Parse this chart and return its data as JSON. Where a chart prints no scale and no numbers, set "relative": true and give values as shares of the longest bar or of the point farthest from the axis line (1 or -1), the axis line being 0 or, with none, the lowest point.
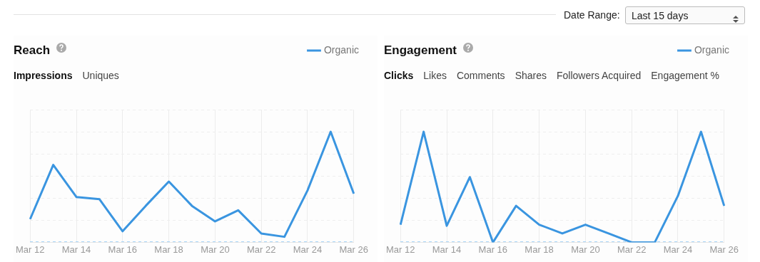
{
  "chart_data": [
    {
      "type": "line",
      "title": "Reach",
      "annotations": [
        "Date Range:",
        "Last 15 days",
        "Impressions",
        "Uniques"
      ],
      "categories": [
        "Mar 12",
        null,
        "Mar 14",
        null,
        "Mar 16",
        null,
        "Mar 18",
        null,
        "Mar 20",
        null,
        "Mar 22",
        null,
        "Mar 24",
        null,
        "Mar 26"
      ],
      "relative": true,
      "grid": true,
      "legend": "top right",
      "marker": "none",
      "series": [
        {
          "name": "Organic",
          "color": "#3a95e0",
          "values": [
            0.21,
            0.7,
            0.41,
            0.39,
            0.1,
            0.33,
            0.55,
            0.33,
            0.19,
            0.29,
            0.08,
            0.05,
            0.47,
            1,
            0.44
          ]
        }
      ]
    },
    {
      "type": "line",
      "title": "Engagement",
      "annotations": [
        "Clicks",
        "Likes",
        "Comments",
        "Shares",
        "Followers Acquired",
        "Engagement %"
      ],
      "categories": [
        "Mar 12",
        null,
        "Mar 14",
        null,
        "Mar 16",
        null,
        "Mar 18",
        null,
        "Mar 20",
        null,
        "Mar 22",
        null,
        "Mar 24",
        null,
        "Mar 26"
      ],
      "relative": true,
      "grid": true,
      "legend": "top right",
      "marker": "none",
      "series": [
        {
          "name": "Organic",
          "color": "#3a95e0",
          "values": [
            0.16,
            1,
            0.15,
            0.59,
            0,
            0.33,
            0.16,
            0.08,
            0.16,
            0.08,
            0,
            0,
            0.42,
            1,
            0.33
          ]
        }
      ]
    }
  ]
}
